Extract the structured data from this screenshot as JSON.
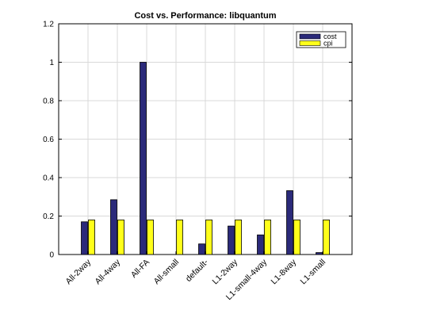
{
  "chart_data": {
    "type": "bar",
    "title": "Cost vs. Performance: libquantum",
    "xlabel": "",
    "ylabel": "",
    "categories": [
      "All-2way",
      "All-4way",
      "All-FA",
      "All-small",
      "default-",
      "L1-2way",
      "L1-small-4way",
      "L1-8way",
      "L1-small"
    ],
    "series": [
      {
        "name": "cost",
        "color": "#2b2a7a",
        "values": [
          0.17,
          0.285,
          1.0,
          0.0,
          0.055,
          0.148,
          0.102,
          0.332,
          0.01
        ]
      },
      {
        "name": "cpi",
        "color": "#ffff1a",
        "values": [
          0.18,
          0.18,
          0.18,
          0.18,
          0.18,
          0.18,
          0.18,
          0.18,
          0.18
        ]
      }
    ],
    "ylim": [
      0,
      1.2
    ],
    "yticks": [
      "0",
      "0.2",
      "0.4",
      "0.6",
      "0.8",
      "1",
      "1.2"
    ],
    "grid": true,
    "legend_position": "top-right"
  }
}
